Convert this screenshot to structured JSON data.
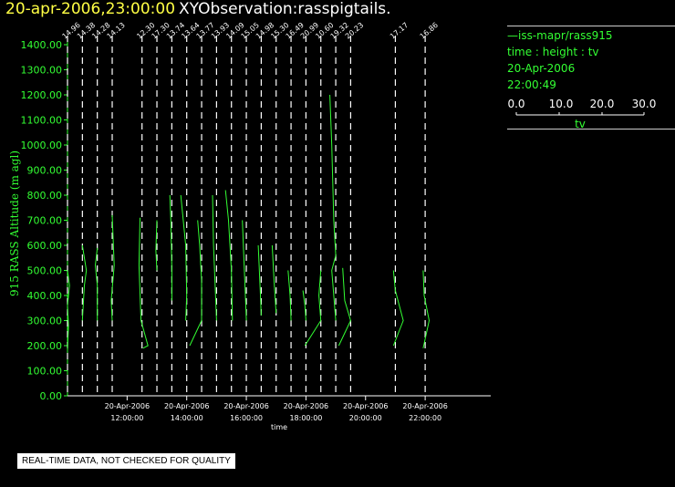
{
  "header": {
    "date": "20-apr-2006,23:00:00",
    "title": "XYObservation:rasspigtails."
  },
  "legend": {
    "series": "iss-mapr/rass915",
    "variables": "time : height : tv",
    "date": "20-Apr-2006",
    "time": "22:00:49",
    "scale_ticks": [
      "0.0",
      "10.0",
      "20.0",
      "30.0"
    ],
    "scale_label": "tv"
  },
  "notice": "REAL-TIME DATA, NOT CHECKED FOR QUALITY",
  "colors": {
    "axis": "#33ff33",
    "trace": "#33ff33",
    "dash": "#ffffff",
    "date": "#ffff44"
  },
  "chart_data": {
    "type": "line",
    "ylabel": "915 RASS Altitude (m agl)",
    "xlabel": "time",
    "ylim": [
      0,
      1400
    ],
    "yticks": [
      "0.00",
      "100.00",
      "200.00",
      "300.00",
      "400.00",
      "500.00",
      "600.00",
      "700.00",
      "800.00",
      "900.00",
      "1000.00",
      "1100.00",
      "1200.00",
      "1300.00",
      "1400.00"
    ],
    "xlim_hours": [
      10.0,
      24.2
    ],
    "xticks": [
      {
        "hour": 12,
        "date": "20-Apr-2006",
        "time": "12:00:00"
      },
      {
        "hour": 14,
        "date": "20-Apr-2006",
        "time": "14:00:00"
      },
      {
        "hour": 16,
        "date": "20-Apr-2006",
        "time": "16:00:00"
      },
      {
        "hour": 18,
        "date": "20-Apr-2006",
        "time": "18:00:00"
      },
      {
        "hour": 20,
        "date": "20-Apr-2006",
        "time": "20:00:00"
      },
      {
        "hour": 22,
        "date": "20-Apr-2006",
        "time": "22:00:00"
      }
    ],
    "tv_scale_hours_per_unit": 0.0333,
    "profiles": [
      {
        "time": "10:00",
        "hour": 10.0,
        "label": "14.96",
        "points": [
          [
            0,
            180
          ],
          [
            1,
            280
          ],
          [
            0,
            360
          ],
          [
            2,
            440
          ],
          [
            0,
            500
          ]
        ]
      },
      {
        "time": "10:30",
        "hour": 10.5,
        "label": "14.38",
        "points": [
          [
            0,
            600
          ],
          [
            4,
            500
          ],
          [
            2,
            440
          ],
          [
            0,
            300
          ]
        ]
      },
      {
        "time": "11:00",
        "hour": 11.0,
        "label": "14.28",
        "points": [
          [
            0,
            300
          ],
          [
            0,
            440
          ],
          [
            -2,
            520
          ],
          [
            0,
            590
          ]
        ]
      },
      {
        "time": "11:30",
        "hour": 11.5,
        "label": "14.13",
        "points": [
          [
            0,
            300
          ],
          [
            -1,
            380
          ],
          [
            2,
            520
          ],
          [
            0,
            720
          ]
        ]
      },
      {
        "time": "12:30",
        "hour": 12.5,
        "label": "12.30",
        "points": [
          [
            -2,
            710
          ],
          [
            -3,
            520
          ],
          [
            -1,
            300
          ],
          [
            6,
            200
          ],
          [
            1,
            190
          ]
        ]
      },
      {
        "time": "13:00",
        "hour": 13.0,
        "label": "17.30",
        "points": [
          [
            0,
            700
          ],
          [
            -1,
            580
          ],
          [
            0,
            500
          ]
        ]
      },
      {
        "time": "13:30",
        "hour": 13.5,
        "label": "13.74",
        "points": [
          [
            -2,
            800
          ],
          [
            -1,
            700
          ],
          [
            0,
            500
          ],
          [
            0,
            380
          ]
        ]
      },
      {
        "time": "14:00",
        "hour": 14.0,
        "label": "13.64",
        "points": [
          [
            -6,
            800
          ],
          [
            -1,
            600
          ],
          [
            0,
            400
          ],
          [
            -1,
            300
          ]
        ]
      },
      {
        "time": "14:30",
        "hour": 14.5,
        "label": "13.77",
        "points": [
          [
            -4,
            700
          ],
          [
            -2,
            600
          ],
          [
            0,
            460
          ],
          [
            0,
            300
          ],
          [
            -12,
            200
          ]
        ]
      },
      {
        "time": "15:00",
        "hour": 15.0,
        "label": "13.93",
        "points": [
          [
            -4,
            800
          ],
          [
            -3,
            600
          ],
          [
            -1,
            400
          ],
          [
            0,
            300
          ]
        ]
      },
      {
        "time": "15:30",
        "hour": 15.5,
        "label": "14.09",
        "points": [
          [
            -6,
            820
          ],
          [
            -3,
            700
          ],
          [
            0,
            500
          ],
          [
            1,
            300
          ]
        ]
      },
      {
        "time": "16:00",
        "hour": 16.0,
        "label": "15.05",
        "points": [
          [
            -4,
            700
          ],
          [
            -2,
            500
          ],
          [
            0,
            300
          ]
        ]
      },
      {
        "time": "16:30",
        "hour": 16.5,
        "label": "14.98",
        "points": [
          [
            -3,
            600
          ],
          [
            -1,
            420
          ],
          [
            0,
            320
          ]
        ]
      },
      {
        "time": "17:00",
        "hour": 17.0,
        "label": "15.30",
        "points": [
          [
            -4,
            600
          ],
          [
            -2,
            450
          ],
          [
            0,
            330
          ]
        ]
      },
      {
        "time": "17:30",
        "hour": 17.5,
        "label": "16.49",
        "points": [
          [
            -3,
            500
          ],
          [
            -1,
            400
          ],
          [
            0,
            300
          ]
        ]
      },
      {
        "time": "18:00",
        "hour": 18.0,
        "label": "20.99",
        "points": [
          [
            -3,
            420
          ],
          [
            -1,
            360
          ],
          [
            0,
            300
          ]
        ]
      },
      {
        "time": "18:30",
        "hour": 18.5,
        "label": "10.60",
        "points": [
          [
            -16,
            200
          ],
          [
            0,
            300
          ],
          [
            -2,
            400
          ],
          [
            0,
            500
          ]
        ]
      },
      {
        "time": "19:00",
        "hour": 19.0,
        "label": "19.32",
        "points": [
          [
            -6,
            1200
          ],
          [
            -4,
            1000
          ],
          [
            -2,
            700
          ],
          [
            0,
            560
          ],
          [
            -4,
            500
          ],
          [
            0,
            300
          ]
        ]
      },
      {
        "time": "19:30",
        "hour": 19.5,
        "label": "20.23",
        "points": [
          [
            -8,
            510
          ],
          [
            -6,
            380
          ],
          [
            0,
            300
          ],
          [
            -12,
            200
          ]
        ]
      },
      {
        "time": "21:00",
        "hour": 21.0,
        "label": "17.17",
        "points": [
          [
            -2,
            500
          ],
          [
            0,
            420
          ],
          [
            8,
            300
          ],
          [
            -2,
            200
          ]
        ]
      },
      {
        "time": "22:00",
        "hour": 22.0,
        "label": "16.86",
        "points": [
          [
            -2,
            500
          ],
          [
            -1,
            400
          ],
          [
            4,
            300
          ],
          [
            -2,
            190
          ]
        ]
      }
    ]
  }
}
